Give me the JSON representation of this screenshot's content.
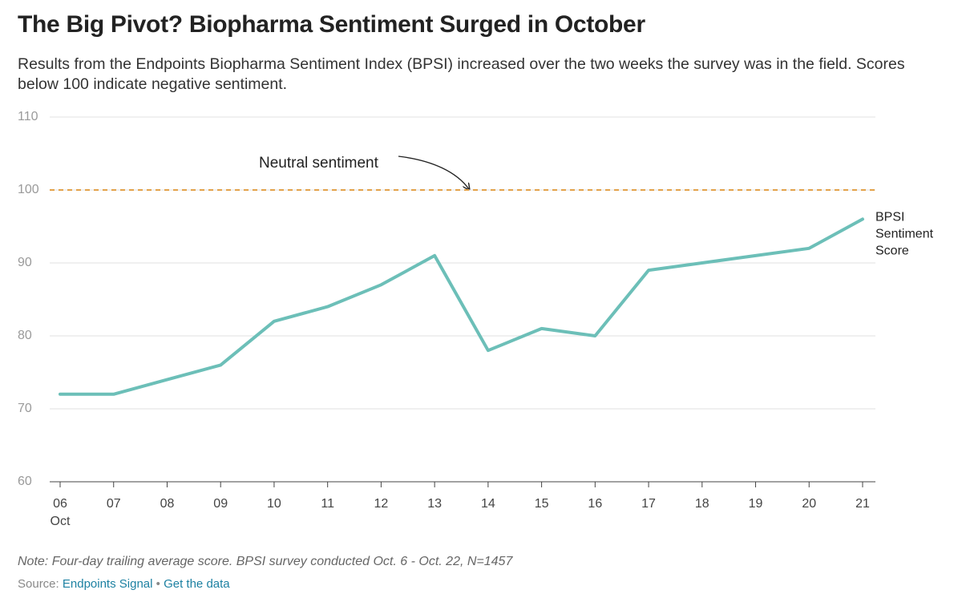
{
  "chart_data": {
    "type": "line",
    "title": "The Big Pivot? Biopharma Sentiment Surged in October",
    "subtitle": "Results from the Endpoints Biopharma Sentiment Index (BPSI) increased over the two weeks the survey was in the field. Scores below 100 indicate negative sentiment.",
    "categories": [
      "06",
      "07",
      "08",
      "09",
      "10",
      "11",
      "12",
      "13",
      "14",
      "15",
      "16",
      "17",
      "18",
      "19",
      "20",
      "21"
    ],
    "month_label": "Oct",
    "series": [
      {
        "name": "BPSI Sentiment Score",
        "color": "#6cbfb8",
        "values": [
          72,
          72,
          74,
          76,
          82,
          84,
          87,
          91,
          78,
          81,
          80,
          89,
          90,
          91,
          92,
          96
        ]
      }
    ],
    "ylim": [
      60,
      110
    ],
    "yticks": [
      60,
      70,
      80,
      90,
      100,
      110
    ],
    "grid": true,
    "reference_line": {
      "value": 100,
      "label": "Neutral sentiment",
      "color": "#e3a24a"
    },
    "note": "Note: Four-day trailing average score. BPSI survey conducted Oct. 6 - Oct. 22, N=1457",
    "source": {
      "label": "Source:",
      "name": "Endpoints Signal",
      "separator": "•",
      "link": "Get the data"
    }
  }
}
